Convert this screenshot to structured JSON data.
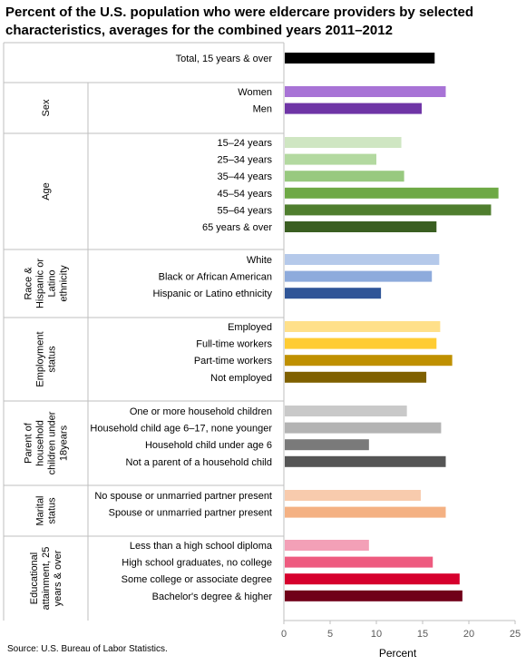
{
  "title": "Percent of the U.S. population who were eldercare providers by selected characteristics, averages for the combined years 2011–2012",
  "source": "Source: U.S. Bureau of Labor Statistics.",
  "colors": {
    "total": "#000000",
    "women": "#a873d6",
    "men": "#6f35a6",
    "age": [
      "#cfe6c2",
      "#b3d9a0",
      "#98c97f",
      "#6ea945",
      "#4f7e2e",
      "#3a5e21"
    ],
    "race": [
      "#b5c9ea",
      "#8eabdc",
      "#2f5597"
    ],
    "employment": [
      "#ffe08a",
      "#ffcc33",
      "#bf9000",
      "#7f6000"
    ],
    "parent": [
      "#c9c9c9",
      "#b3b3b3",
      "#7a7a7a",
      "#555555"
    ],
    "marital": [
      "#f8cbad",
      "#f4b183"
    ],
    "education": [
      "#f3a0b7",
      "#ee5b7f",
      "#d6002d",
      "#700018"
    ]
  },
  "chart_data": {
    "type": "bar",
    "orientation": "horizontal",
    "title": "Percent of the U.S. population who were eldercare providers by selected characteristics, averages for the combined years 2011–2012",
    "xlabel": "Percent",
    "xlim": [
      0,
      25
    ],
    "xticks": [
      "0",
      "5",
      "10",
      "15",
      "20",
      "25"
    ],
    "groups": [
      {
        "label": "",
        "bars": [
          {
            "label": "Total, 15 years & over",
            "value": 16.3
          }
        ]
      },
      {
        "label": "Sex",
        "bars": [
          {
            "label": "Women",
            "value": 17.5
          },
          {
            "label": "Men",
            "value": 14.9
          }
        ]
      },
      {
        "label": "Age",
        "bars": [
          {
            "label": "15–24 years",
            "value": 12.7
          },
          {
            "label": "25–34 years",
            "value": 10.0
          },
          {
            "label": "35–44 years",
            "value": 13.0
          },
          {
            "label": "45–54 years",
            "value": 23.2
          },
          {
            "label": "55–64 years",
            "value": 22.4
          },
          {
            "label": "65 years & over",
            "value": 16.5
          }
        ]
      },
      {
        "label": "Race & Hispanic or Latino ethnicity",
        "bars": [
          {
            "label": "White",
            "value": 16.8
          },
          {
            "label": "Black or African American",
            "value": 16.0
          },
          {
            "label": "Hispanic or Latino ethnicity",
            "value": 10.5
          }
        ]
      },
      {
        "label": "Employment status",
        "bars": [
          {
            "label": "Employed",
            "value": 16.9
          },
          {
            "label": "Full-time workers",
            "value": 16.5
          },
          {
            "label": "Part-time workers",
            "value": 18.2
          },
          {
            "label": "Not employed",
            "value": 15.4
          }
        ]
      },
      {
        "label": "Parent of household children under 18years",
        "bars": [
          {
            "label": "One or more household children",
            "value": 13.3
          },
          {
            "label": "Household child age 6–17, none younger",
            "value": 17.0
          },
          {
            "label": "Household child under age 6",
            "value": 9.2
          },
          {
            "label": "Not a parent of a household child",
            "value": 17.5
          }
        ]
      },
      {
        "label": "Marital status",
        "bars": [
          {
            "label": "No spouse or unmarried partner present",
            "value": 14.8
          },
          {
            "label": "Spouse or unmarried partner present",
            "value": 17.5
          }
        ]
      },
      {
        "label": "Educational attainment, 25 years & over",
        "bars": [
          {
            "label": "Less than a high school diploma",
            "value": 9.2
          },
          {
            "label": "High school graduates, no college",
            "value": 16.1
          },
          {
            "label": "Some college or associate  degree",
            "value": 19.0
          },
          {
            "label": "Bachelor's degree & higher",
            "value": 19.3
          }
        ]
      }
    ]
  }
}
